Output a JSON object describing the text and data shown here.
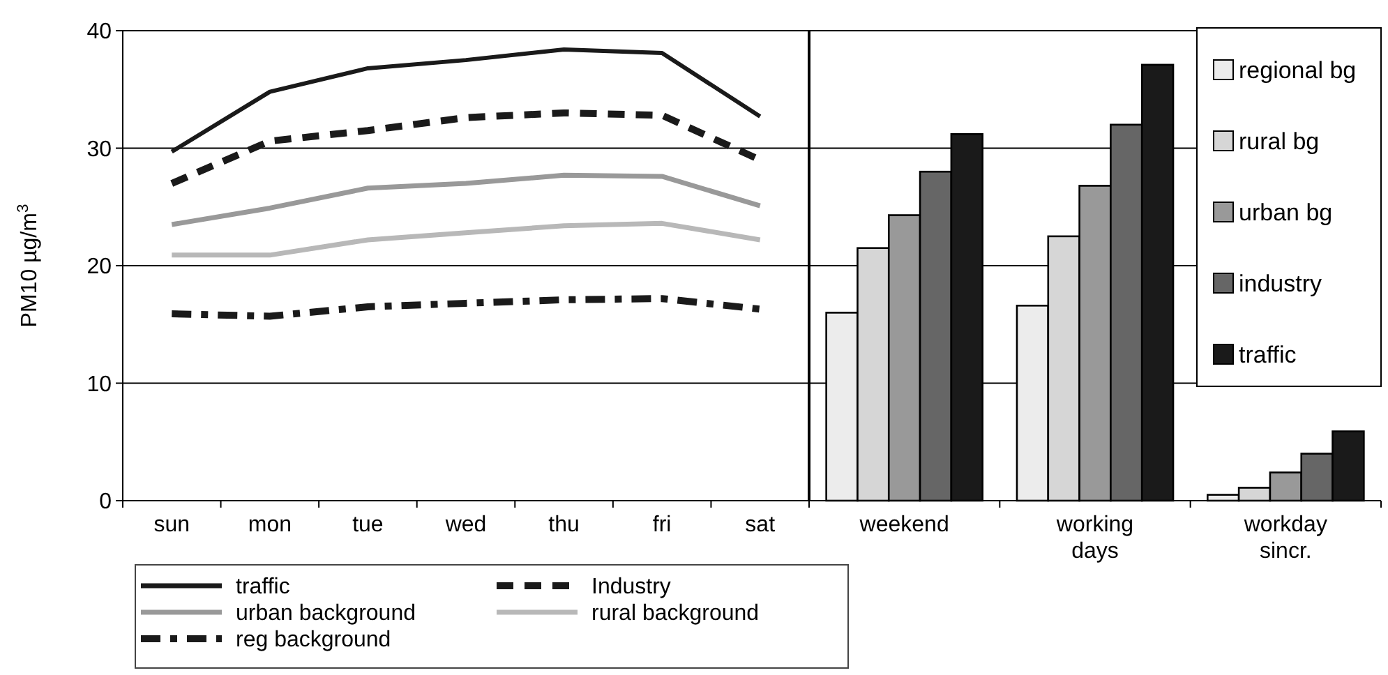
{
  "chart_data": [
    {
      "type": "line",
      "ylabel": "PM10 µg/m$^{3}$",
      "categories": [
        "sun",
        "mon",
        "tue",
        "wed",
        "thu",
        "fri",
        "sat"
      ],
      "ylim": [
        0,
        40
      ],
      "yticks": [
        0,
        10,
        20,
        30,
        40
      ],
      "grid": "y",
      "legend": "bottom",
      "marker": "none",
      "series": [
        {
          "name": "traffic",
          "color": "#1a1a1a",
          "line_style": "solid",
          "values": [
            29.7,
            34.8,
            36.8,
            37.5,
            38.4,
            38.1,
            32.7
          ]
        },
        {
          "name": "Industry",
          "color": "#1a1a1a",
          "line_style": "dashed",
          "values": [
            27.0,
            30.6,
            31.5,
            32.6,
            33.0,
            32.8,
            29.0
          ]
        },
        {
          "name": "urban background",
          "color": "#999999",
          "line_style": "solid",
          "values": [
            23.5,
            24.9,
            26.6,
            27.0,
            27.7,
            27.6,
            25.1
          ]
        },
        {
          "name": "rural background",
          "color": "#b8b8b8",
          "line_style": "solid",
          "values": [
            20.9,
            20.9,
            22.2,
            22.8,
            23.4,
            23.6,
            22.2
          ]
        },
        {
          "name": "reg background",
          "color": "#1a1a1a",
          "line_style": "dashdot",
          "values": [
            15.9,
            15.7,
            16.5,
            16.8,
            17.1,
            17.2,
            16.3
          ]
        }
      ]
    },
    {
      "type": "bar",
      "categories": [
        "weekend",
        "working days",
        "workday sincr."
      ],
      "ylim": [
        0,
        40
      ],
      "yticks": [
        0,
        10,
        20,
        30,
        40
      ],
      "grid": "y",
      "legend": "top right",
      "tick_labels": "x",
      "series": [
        {
          "name": "regional bg",
          "color": "#ececec",
          "values": [
            16.0,
            16.6,
            0.5
          ]
        },
        {
          "name": "rural bg",
          "color": "#d6d6d6",
          "values": [
            21.5,
            22.5,
            1.1
          ]
        },
        {
          "name": "urban bg",
          "color": "#999999",
          "values": [
            24.3,
            26.8,
            2.4
          ]
        },
        {
          "name": "industry",
          "color": "#666666",
          "values": [
            28.0,
            32.0,
            4.0
          ]
        },
        {
          "name": "traffic",
          "color": "#1a1a1a",
          "values": [
            31.2,
            37.1,
            5.9
          ]
        }
      ]
    }
  ]
}
